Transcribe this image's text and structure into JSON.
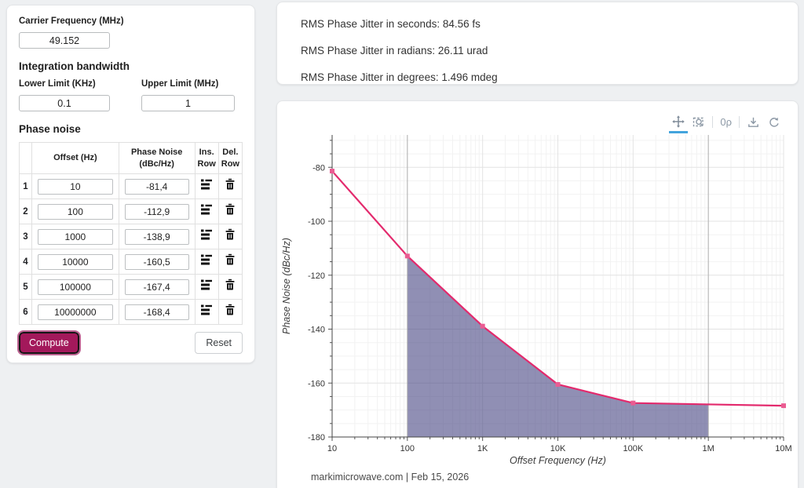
{
  "theme": {
    "accent": "#a3195b",
    "toolbar_active_underline": "#43a4dd",
    "page_background": "#eef0f2"
  },
  "inputs_card": {
    "carrier": {
      "label": "Carrier Frequency (MHz)",
      "value": "49.152"
    },
    "integration": {
      "heading": "Integration bandwidth",
      "lower": {
        "label": "Lower Limit (KHz)",
        "value": "0.1"
      },
      "upper": {
        "label": "Upper Limit (MHz)",
        "value": "1"
      }
    },
    "phase_noise": {
      "heading": "Phase noise",
      "table": {
        "headers": {
          "index": "",
          "offset": "Offset (Hz)",
          "noise": "Phase Noise (dBc/Hz)",
          "ins": "Ins. Row",
          "del": "Del. Row"
        },
        "rows": [
          {
            "index": "1",
            "offset": "10",
            "noise": "-81,4"
          },
          {
            "index": "2",
            "offset": "100",
            "noise": "-112,9"
          },
          {
            "index": "3",
            "offset": "1000",
            "noise": "-138,9"
          },
          {
            "index": "4",
            "offset": "10000",
            "noise": "-160,5"
          },
          {
            "index": "5",
            "offset": "100000",
            "noise": "-167,4"
          },
          {
            "index": "6",
            "offset": "10000000",
            "noise": "-168,4"
          }
        ]
      }
    },
    "compute_label": "Compute",
    "reset_label": "Reset"
  },
  "results_card": {
    "lines": [
      "RMS Phase Jitter in seconds: 84.56 fs",
      "RMS Phase Jitter in radians: 26.11 urad",
      "RMS Phase Jitter in degrees: 1.496 mdeg"
    ]
  },
  "chart_card": {
    "toolbar": {
      "icons": [
        "pan",
        "box-zoom",
        "reset-zoom",
        "download",
        "refresh"
      ],
      "active": "pan",
      "reset_glyph": "0ρ"
    },
    "caption": "markimicrowave.com | Feb 15, 2026"
  },
  "chart_data": {
    "type": "line",
    "title": "",
    "xlabel": "Offset Frequency (Hz)",
    "ylabel": "Phase Noise (dBc/Hz)",
    "x_scale": "log",
    "grid": true,
    "x": [
      10,
      100,
      1000,
      10000,
      100000,
      10000000
    ],
    "y": [
      -81.4,
      -112.9,
      -138.9,
      -160.5,
      -167.4,
      -168.4
    ],
    "series": [
      {
        "name": "Phase Noise",
        "x": [
          10,
          100,
          1000,
          10000,
          100000,
          10000000
        ],
        "values": [
          -81.4,
          -112.9,
          -138.9,
          -160.5,
          -167.4,
          -168.4
        ]
      }
    ],
    "xlim": [
      10,
      10000000
    ],
    "ylim": [
      -180,
      -68
    ],
    "x_tick_values": [
      10,
      100,
      1000,
      10000,
      100000,
      1000000,
      10000000
    ],
    "x_ticks": [
      "10",
      "100",
      "1K",
      "10K",
      "100K",
      "1M",
      "10M"
    ],
    "y_ticks": [
      -80,
      -100,
      -120,
      -140,
      -160,
      -180
    ],
    "y_minor_step": 5,
    "integration_region": {
      "from": 100,
      "to": 1000000,
      "fill": "rgba(70,68,130,0.6)"
    },
    "limit_lines": [
      100,
      1000000
    ],
    "line_color": "#e32a6d",
    "marker_color": "#ea5c92",
    "marker_shape": "square"
  }
}
